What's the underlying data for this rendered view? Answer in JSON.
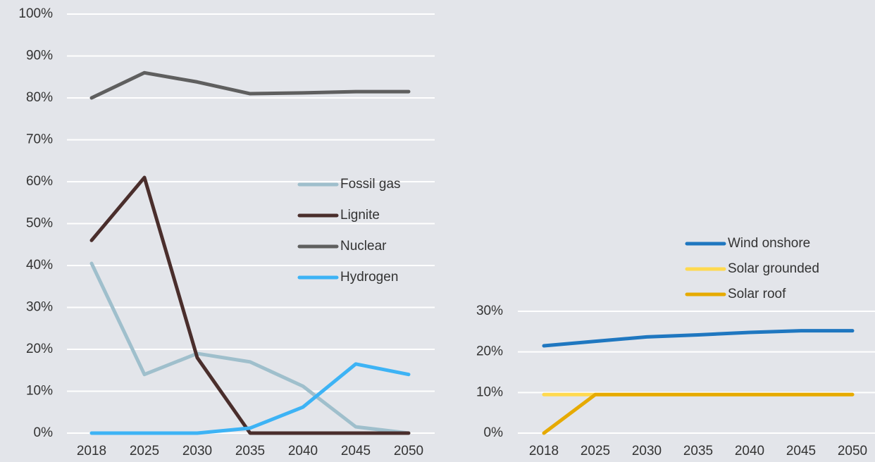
{
  "chart_data": [
    {
      "type": "line",
      "categories": [
        "2018",
        "2025",
        "2030",
        "2035",
        "2040",
        "2045",
        "2050"
      ],
      "series": [
        {
          "name": "Fossil gas",
          "color": "#9fbfcc",
          "values": [
            40.5,
            14,
            19,
            17,
            11.2,
            1.5,
            0
          ]
        },
        {
          "name": "Lignite",
          "color": "#4a2e2c",
          "values": [
            46,
            61,
            18,
            0,
            0,
            0,
            0
          ]
        },
        {
          "name": "Nuclear",
          "color": "#5f5f5f",
          "values": [
            80,
            86,
            83.8,
            81,
            81.2,
            81.5,
            81.5
          ]
        },
        {
          "name": "Hydrogen",
          "color": "#3db3f5",
          "values": [
            0,
            0,
            0,
            1.2,
            6.2,
            16.5,
            14
          ]
        }
      ],
      "ylim": [
        0,
        100
      ],
      "yticks": [
        {
          "value": 0,
          "label": "0%"
        },
        {
          "value": 10,
          "label": "10%"
        },
        {
          "value": 20,
          "label": "20%"
        },
        {
          "value": 30,
          "label": "30%"
        },
        {
          "value": 40,
          "label": "40%"
        },
        {
          "value": 50,
          "label": "50%"
        },
        {
          "value": 60,
          "label": "60%"
        },
        {
          "value": 70,
          "label": "70%"
        },
        {
          "value": 80,
          "label": "80%"
        },
        {
          "value": 90,
          "label": "90%"
        },
        {
          "value": 100,
          "label": "100%"
        }
      ],
      "grid": true
    },
    {
      "type": "line",
      "categories": [
        "2018",
        "2025",
        "2030",
        "2035",
        "2040",
        "2045",
        "2050"
      ],
      "series": [
        {
          "name": "Wind onshore",
          "color": "#1f77c0",
          "values": [
            21.5,
            22.6,
            23.7,
            24.2,
            24.8,
            25.2,
            25.2
          ]
        },
        {
          "name": "Solar grounded",
          "color": "#ffd94f",
          "values": [
            9.5,
            9.5,
            9.5,
            9.5,
            9.5,
            9.5,
            9.5
          ]
        },
        {
          "name": "Solar roof",
          "color": "#e6aa00",
          "values": [
            0,
            9.5,
            9.5,
            9.5,
            9.5,
            9.5,
            9.5
          ]
        }
      ],
      "ylim": [
        0,
        30
      ],
      "yticks": [
        {
          "value": 0,
          "label": "0%"
        },
        {
          "value": 10,
          "label": "10%"
        },
        {
          "value": 20,
          "label": "20%"
        },
        {
          "value": 30,
          "label": "30%"
        }
      ],
      "grid": true
    }
  ]
}
